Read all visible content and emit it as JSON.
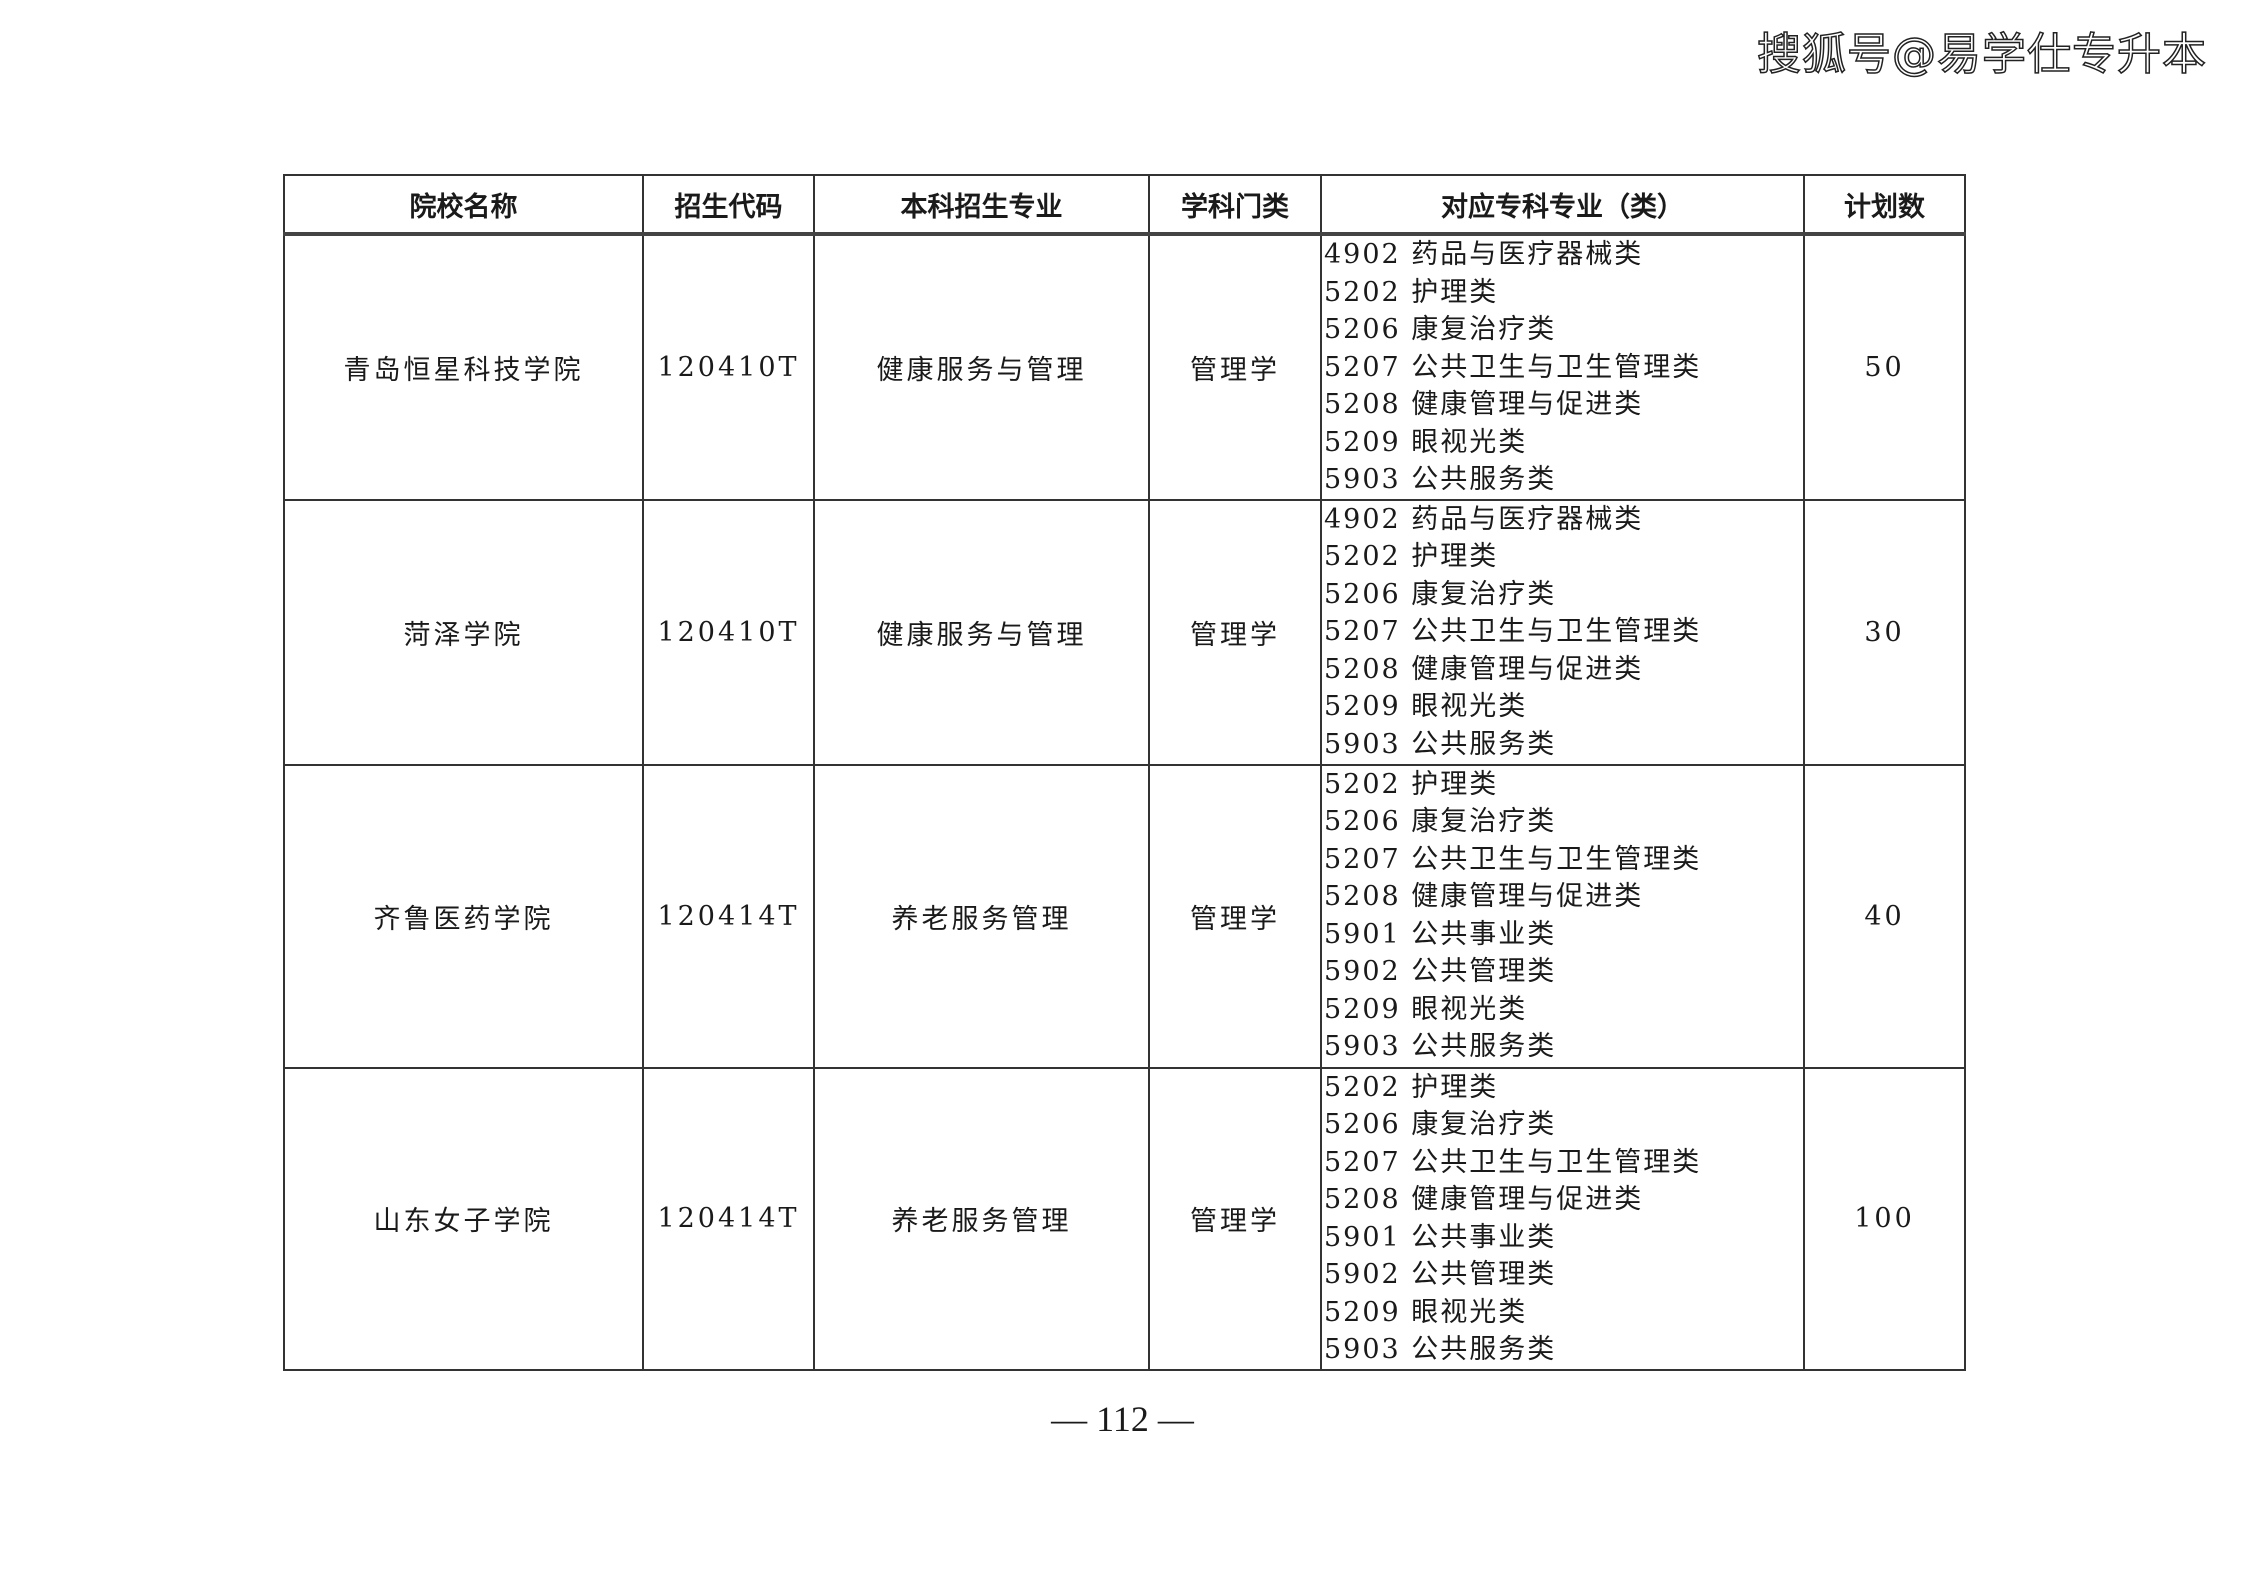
{
  "watermark": "搜狐号@易学仕专升本",
  "table": {
    "headers": [
      "院校名称",
      "招生代码",
      "本科招生专业",
      "学科门类",
      "对应专科专业（类）",
      "计划数"
    ],
    "rows": [
      {
        "school": "青岛恒星科技学院",
        "code": "120410T",
        "major": "健康服务与管理",
        "category": "管理学",
        "sub": [
          "4902 药品与医疗器械类",
          "5202 护理类",
          "5206 康复治疗类",
          "5207 公共卫生与卫生管理类",
          "5208 健康管理与促进类",
          "5209 眼视光类",
          "5903 公共服务类"
        ],
        "plan": "50"
      },
      {
        "school": "菏泽学院",
        "code": "120410T",
        "major": "健康服务与管理",
        "category": "管理学",
        "sub": [
          "4902 药品与医疗器械类",
          "5202 护理类",
          "5206 康复治疗类",
          "5207 公共卫生与卫生管理类",
          "5208 健康管理与促进类",
          "5209 眼视光类",
          "5903 公共服务类"
        ],
        "plan": "30"
      },
      {
        "school": "齐鲁医药学院",
        "code": "120414T",
        "major": "养老服务管理",
        "category": "管理学",
        "sub": [
          "5202 护理类",
          "5206 康复治疗类",
          "5207 公共卫生与卫生管理类",
          "5208 健康管理与促进类",
          "5901 公共事业类",
          "5902 公共管理类",
          "5209 眼视光类",
          "5903 公共服务类"
        ],
        "plan": "40"
      },
      {
        "school": "山东女子学院",
        "code": "120414T",
        "major": "养老服务管理",
        "category": "管理学",
        "sub": [
          "5202 护理类",
          "5206 康复治疗类",
          "5207 公共卫生与卫生管理类",
          "5208 健康管理与促进类",
          "5901 公共事业类",
          "5902 公共管理类",
          "5209 眼视光类",
          "5903 公共服务类"
        ],
        "plan": "100"
      }
    ]
  },
  "page_number": "— 112 —"
}
